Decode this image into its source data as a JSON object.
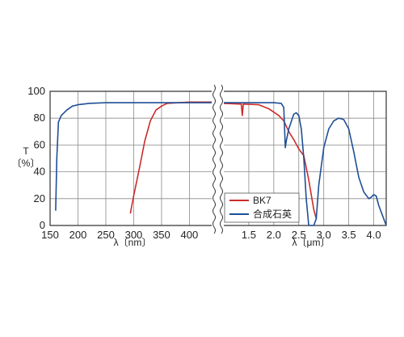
{
  "chart_data": {
    "type": "line",
    "title": "",
    "ylabel": "T",
    "ylabel_unit": "〔%〕",
    "ylim": [
      0,
      100
    ],
    "y_ticks": [
      "0",
      "20",
      "40",
      "60",
      "80",
      "100"
    ],
    "grid": true,
    "legend_position": "bottom-right (inside right panel)",
    "panels": [
      {
        "xlabel": "λ〔nm〕",
        "x_unit": "nm",
        "xlim": [
          150,
          440
        ],
        "x_ticks": [
          "150",
          "200",
          "250",
          "300",
          "350",
          "400"
        ]
      },
      {
        "xlabel": "λ〔μm〕",
        "x_unit": "μm",
        "xlim": [
          1.0,
          4.25
        ],
        "x_ticks": [
          "1.5",
          "2.0",
          "2.5",
          "3.0",
          "3.5",
          "4.0"
        ]
      }
    ],
    "series": [
      {
        "name": "BK7",
        "color": "#cc2b2b",
        "left_points": [
          [
            294,
            9
          ],
          [
            300,
            22
          ],
          [
            310,
            42
          ],
          [
            320,
            63
          ],
          [
            330,
            78
          ],
          [
            340,
            86
          ],
          [
            350,
            89
          ],
          [
            360,
            91
          ],
          [
            380,
            91.5
          ],
          [
            400,
            92
          ],
          [
            440,
            92
          ]
        ],
        "right_points": [
          [
            1.0,
            91
          ],
          [
            1.35,
            90.5
          ],
          [
            1.37,
            82
          ],
          [
            1.39,
            90.5
          ],
          [
            1.7,
            90
          ],
          [
            1.9,
            87
          ],
          [
            2.1,
            82
          ],
          [
            2.2,
            78
          ],
          [
            2.3,
            70
          ],
          [
            2.4,
            64
          ],
          [
            2.5,
            57
          ],
          [
            2.6,
            52
          ],
          [
            2.7,
            34
          ],
          [
            2.8,
            12
          ],
          [
            2.85,
            5
          ]
        ]
      },
      {
        "name": "合成石英",
        "color": "#1f4f96",
        "left_points": [
          [
            160,
            11
          ],
          [
            162,
            50
          ],
          [
            165,
            77
          ],
          [
            170,
            82
          ],
          [
            180,
            86
          ],
          [
            190,
            89
          ],
          [
            200,
            90
          ],
          [
            220,
            91
          ],
          [
            250,
            91.5
          ],
          [
            300,
            91.5
          ],
          [
            440,
            91.5
          ]
        ],
        "right_points": [
          [
            1.0,
            91.5
          ],
          [
            1.7,
            91.5
          ],
          [
            2.0,
            91.5
          ],
          [
            2.15,
            91
          ],
          [
            2.2,
            88
          ],
          [
            2.23,
            58
          ],
          [
            2.25,
            63
          ],
          [
            2.3,
            72
          ],
          [
            2.4,
            83
          ],
          [
            2.45,
            84
          ],
          [
            2.5,
            82
          ],
          [
            2.55,
            72
          ],
          [
            2.6,
            50
          ],
          [
            2.65,
            20
          ],
          [
            2.7,
            0
          ],
          [
            2.75,
            0
          ],
          [
            2.8,
            0
          ],
          [
            2.85,
            5
          ],
          [
            2.9,
            30
          ],
          [
            3.0,
            58
          ],
          [
            3.1,
            72
          ],
          [
            3.2,
            78
          ],
          [
            3.3,
            80
          ],
          [
            3.4,
            79
          ],
          [
            3.5,
            72
          ],
          [
            3.6,
            55
          ],
          [
            3.7,
            36
          ],
          [
            3.8,
            25
          ],
          [
            3.9,
            20
          ],
          [
            3.95,
            21
          ],
          [
            4.0,
            23
          ],
          [
            4.05,
            22
          ],
          [
            4.1,
            15
          ],
          [
            4.2,
            5
          ],
          [
            4.25,
            0
          ]
        ]
      }
    ]
  }
}
